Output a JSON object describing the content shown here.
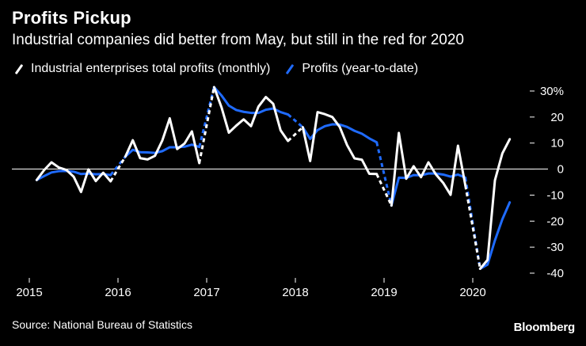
{
  "header": {
    "title": "Profits Pickup",
    "subtitle": "Industrial companies did better from May, but still in the red for 2020"
  },
  "legend": [
    {
      "label": "Industrial enterprises total profits (monthly)",
      "color": "#ffffff"
    },
    {
      "label": "Profits (year-to-date)",
      "color": "#1f6bff"
    }
  ],
  "footer": {
    "source": "Source: National Bureau of Statistics",
    "brand": "Bloomberg"
  },
  "chart_data": {
    "type": "line",
    "x_tick_labels": [
      "2015",
      "2016",
      "2017",
      "2018",
      "2019",
      "2020"
    ],
    "xlim": [
      "2015-01",
      "2020-08"
    ],
    "ylim": [
      -40,
      32
    ],
    "y_ticks": [
      {
        "value": 30,
        "label": "30%"
      },
      {
        "value": 20,
        "label": "20"
      },
      {
        "value": 10,
        "label": "10"
      },
      {
        "value": 0,
        "label": "0"
      },
      {
        "value": -10,
        "label": "-10"
      },
      {
        "value": -20,
        "label": "-20"
      },
      {
        "value": -30,
        "label": "-30"
      },
      {
        "value": -40,
        "label": "-40"
      }
    ],
    "zero_line": true,
    "grid": false,
    "legend_position": "top-left",
    "series": [
      {
        "name": "Industrial enterprises total profits (monthly)",
        "color": "#ffffff",
        "data": [
          {
            "x": "2015-02",
            "y": -4.2
          },
          {
            "x": "2015-03",
            "y": -0.4
          },
          {
            "x": "2015-04",
            "y": 2.6
          },
          {
            "x": "2015-05",
            "y": 0.6
          },
          {
            "x": "2015-06",
            "y": -0.3
          },
          {
            "x": "2015-07",
            "y": -2.9
          },
          {
            "x": "2015-08",
            "y": -8.8
          },
          {
            "x": "2015-09",
            "y": -0.1
          },
          {
            "x": "2015-10",
            "y": -4.6
          },
          {
            "x": "2015-11",
            "y": -1.4
          },
          {
            "x": "2015-12",
            "y": -4.7
          },
          {
            "x": "2016-02",
            "y": 4.8
          },
          {
            "x": "2016-03",
            "y": 11.1
          },
          {
            "x": "2016-04",
            "y": 4.2
          },
          {
            "x": "2016-05",
            "y": 3.7
          },
          {
            "x": "2016-06",
            "y": 5.1
          },
          {
            "x": "2016-07",
            "y": 11.0
          },
          {
            "x": "2016-08",
            "y": 19.5
          },
          {
            "x": "2016-09",
            "y": 7.7
          },
          {
            "x": "2016-10",
            "y": 9.8
          },
          {
            "x": "2016-11",
            "y": 14.5
          },
          {
            "x": "2016-12",
            "y": 2.3
          },
          {
            "x": "2017-02",
            "y": 31.5
          },
          {
            "x": "2017-03",
            "y": 23.8
          },
          {
            "x": "2017-04",
            "y": 14.0
          },
          {
            "x": "2017-05",
            "y": 16.7
          },
          {
            "x": "2017-06",
            "y": 19.1
          },
          {
            "x": "2017-07",
            "y": 16.5
          },
          {
            "x": "2017-08",
            "y": 24.0
          },
          {
            "x": "2017-09",
            "y": 27.7
          },
          {
            "x": "2017-10",
            "y": 25.1
          },
          {
            "x": "2017-11",
            "y": 14.9
          },
          {
            "x": "2017-12",
            "y": 10.8
          },
          {
            "x": "2018-02",
            "y": 16.1
          },
          {
            "x": "2018-03",
            "y": 3.1
          },
          {
            "x": "2018-04",
            "y": 21.9
          },
          {
            "x": "2018-05",
            "y": 21.1
          },
          {
            "x": "2018-06",
            "y": 20.0
          },
          {
            "x": "2018-07",
            "y": 16.2
          },
          {
            "x": "2018-08",
            "y": 9.2
          },
          {
            "x": "2018-09",
            "y": 4.1
          },
          {
            "x": "2018-10",
            "y": 3.6
          },
          {
            "x": "2018-11",
            "y": -1.8
          },
          {
            "x": "2018-12",
            "y": -1.9
          },
          {
            "x": "2019-02",
            "y": -14.0
          },
          {
            "x": "2019-03",
            "y": 13.9
          },
          {
            "x": "2019-04",
            "y": -3.7
          },
          {
            "x": "2019-05",
            "y": 1.1
          },
          {
            "x": "2019-06",
            "y": -3.1
          },
          {
            "x": "2019-07",
            "y": 2.6
          },
          {
            "x": "2019-08",
            "y": -2.0
          },
          {
            "x": "2019-09",
            "y": -5.3
          },
          {
            "x": "2019-10",
            "y": -9.9
          },
          {
            "x": "2019-11",
            "y": 9.0
          },
          {
            "x": "2019-12",
            "y": -6.3
          },
          {
            "x": "2020-02",
            "y": -38.3
          },
          {
            "x": "2020-03",
            "y": -34.9
          },
          {
            "x": "2020-04",
            "y": -4.3
          },
          {
            "x": "2020-05",
            "y": 6.0
          },
          {
            "x": "2020-06",
            "y": 11.5
          }
        ]
      },
      {
        "name": "Profits (year-to-date)",
        "color": "#1f6bff",
        "data": [
          {
            "x": "2015-02",
            "y": -4.2
          },
          {
            "x": "2015-03",
            "y": -2.7
          },
          {
            "x": "2015-04",
            "y": -1.3
          },
          {
            "x": "2015-05",
            "y": -0.8
          },
          {
            "x": "2015-06",
            "y": -0.7
          },
          {
            "x": "2015-07",
            "y": -1.0
          },
          {
            "x": "2015-08",
            "y": -1.9
          },
          {
            "x": "2015-09",
            "y": -1.7
          },
          {
            "x": "2015-10",
            "y": -2.0
          },
          {
            "x": "2015-11",
            "y": -1.9
          },
          {
            "x": "2015-12",
            "y": -2.3
          },
          {
            "x": "2016-02",
            "y": 4.8
          },
          {
            "x": "2016-03",
            "y": 7.4
          },
          {
            "x": "2016-04",
            "y": 6.5
          },
          {
            "x": "2016-05",
            "y": 6.4
          },
          {
            "x": "2016-06",
            "y": 6.2
          },
          {
            "x": "2016-07",
            "y": 6.9
          },
          {
            "x": "2016-08",
            "y": 8.4
          },
          {
            "x": "2016-09",
            "y": 8.4
          },
          {
            "x": "2016-10",
            "y": 8.6
          },
          {
            "x": "2016-11",
            "y": 9.4
          },
          {
            "x": "2016-12",
            "y": 8.5
          },
          {
            "x": "2017-02",
            "y": 31.5
          },
          {
            "x": "2017-03",
            "y": 28.3
          },
          {
            "x": "2017-04",
            "y": 24.4
          },
          {
            "x": "2017-05",
            "y": 22.7
          },
          {
            "x": "2017-06",
            "y": 22.0
          },
          {
            "x": "2017-07",
            "y": 21.6
          },
          {
            "x": "2017-08",
            "y": 21.6
          },
          {
            "x": "2017-09",
            "y": 22.8
          },
          {
            "x": "2017-10",
            "y": 23.3
          },
          {
            "x": "2017-11",
            "y": 21.9
          },
          {
            "x": "2017-12",
            "y": 21.0
          },
          {
            "x": "2018-02",
            "y": 16.1
          },
          {
            "x": "2018-03",
            "y": 11.6
          },
          {
            "x": "2018-04",
            "y": 15.0
          },
          {
            "x": "2018-05",
            "y": 16.5
          },
          {
            "x": "2018-06",
            "y": 17.2
          },
          {
            "x": "2018-07",
            "y": 17.1
          },
          {
            "x": "2018-08",
            "y": 16.2
          },
          {
            "x": "2018-09",
            "y": 14.7
          },
          {
            "x": "2018-10",
            "y": 13.6
          },
          {
            "x": "2018-11",
            "y": 11.8
          },
          {
            "x": "2018-12",
            "y": 10.3
          },
          {
            "x": "2019-02",
            "y": -14.0
          },
          {
            "x": "2019-03",
            "y": -3.3
          },
          {
            "x": "2019-04",
            "y": -3.4
          },
          {
            "x": "2019-05",
            "y": -2.3
          },
          {
            "x": "2019-06",
            "y": -2.4
          },
          {
            "x": "2019-07",
            "y": -1.7
          },
          {
            "x": "2019-08",
            "y": -1.7
          },
          {
            "x": "2019-09",
            "y": -2.1
          },
          {
            "x": "2019-10",
            "y": -2.9
          },
          {
            "x": "2019-11",
            "y": -2.1
          },
          {
            "x": "2019-12",
            "y": -3.3
          },
          {
            "x": "2020-02",
            "y": -38.3
          },
          {
            "x": "2020-03",
            "y": -36.7
          },
          {
            "x": "2020-04",
            "y": -27.4
          },
          {
            "x": "2020-05",
            "y": -19.3
          },
          {
            "x": "2020-06",
            "y": -12.8
          }
        ]
      }
    ]
  }
}
